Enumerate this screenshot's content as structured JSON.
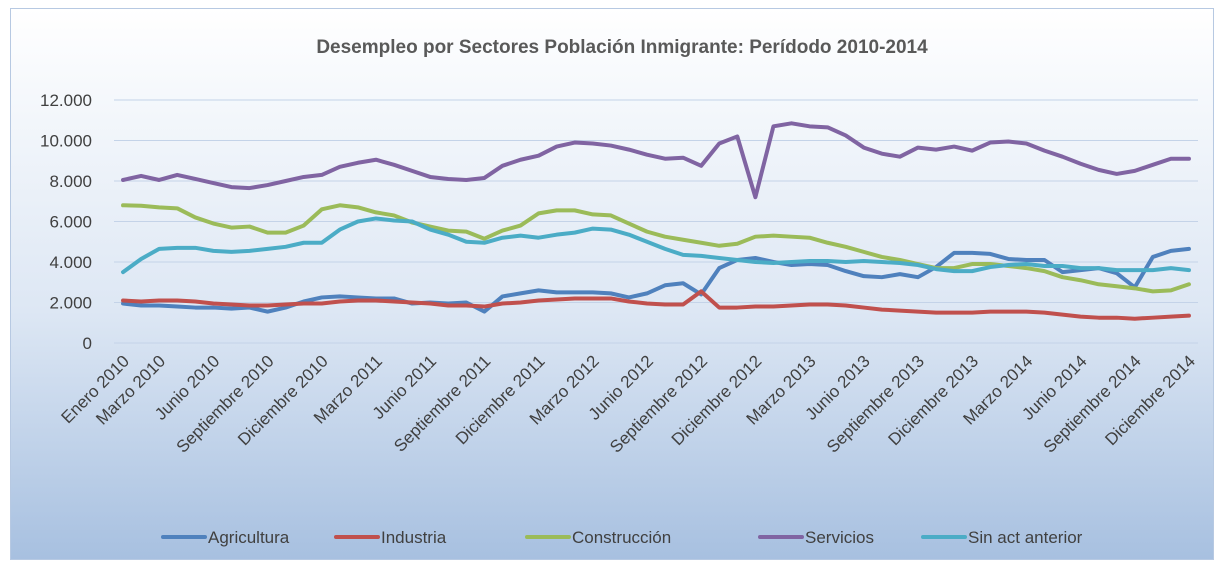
{
  "chart_data": {
    "type": "line",
    "title": "Desempleo por Sectores Población Inmigrante: Perídodo 2010-2014",
    "categories": [
      "Enero 2010",
      null,
      "Marzo 2010",
      null,
      null,
      "Junio 2010",
      null,
      null,
      "Septiembre 2010",
      null,
      null,
      "Diciembre 2010",
      null,
      null,
      "Marzo 2011",
      null,
      null,
      "Junio 2011",
      null,
      null,
      "Septiembre 2011",
      null,
      null,
      "Diciembre 2011",
      null,
      null,
      "Marzo 2012",
      null,
      null,
      "Junio 2012",
      null,
      null,
      "Septiembre 2012",
      null,
      null,
      "Diciembre 2012",
      null,
      null,
      "Marzo 2013",
      null,
      null,
      "Junio 2013",
      null,
      null,
      "Septiembre 2013",
      null,
      null,
      "Diciembre 2013",
      null,
      null,
      "Marzo 2014",
      null,
      null,
      "Junio 2014",
      null,
      null,
      "Septiembre 2014",
      null,
      null,
      "Diciembre 2014"
    ],
    "series": [
      {
        "name": "Agricultura",
        "color": "#4f81bd",
        "values": [
          1950,
          1850,
          1850,
          1800,
          1750,
          1750,
          1700,
          1750,
          1550,
          1750,
          2050,
          2250,
          2300,
          2250,
          2200,
          2200,
          1950,
          2000,
          1950,
          2000,
          1550,
          2300,
          2450,
          2600,
          2500,
          2500,
          2500,
          2450,
          2250,
          2450,
          2850,
          2950,
          2400,
          3700,
          4100,
          4200,
          4000,
          3850,
          3900,
          3850,
          3550,
          3300,
          3250,
          3400,
          3250,
          3750,
          4450,
          4450,
          4400,
          4150,
          4100,
          4100,
          3500,
          3600,
          3700,
          3450,
          2750,
          4250,
          4550,
          4650
        ]
      },
      {
        "name": "Industria",
        "color": "#c0504d",
        "values": [
          2100,
          2050,
          2100,
          2100,
          2050,
          1950,
          1900,
          1850,
          1850,
          1900,
          1950,
          1950,
          2050,
          2100,
          2100,
          2050,
          2000,
          1950,
          1850,
          1850,
          1800,
          1950,
          2000,
          2100,
          2150,
          2200,
          2200,
          2200,
          2050,
          1950,
          1900,
          1900,
          2550,
          1750,
          1750,
          1800,
          1800,
          1850,
          1900,
          1900,
          1850,
          1750,
          1650,
          1600,
          1550,
          1500,
          1500,
          1500,
          1550,
          1550,
          1550,
          1500,
          1400,
          1300,
          1250,
          1250,
          1200,
          1250,
          1300,
          1350
        ]
      },
      {
        "name": "Construcción",
        "color": "#9bbb59",
        "values": [
          6800,
          6780,
          6700,
          6650,
          6200,
          5900,
          5700,
          5750,
          5450,
          5450,
          5800,
          6600,
          6800,
          6700,
          6450,
          6300,
          5950,
          5750,
          5550,
          5500,
          5150,
          5550,
          5800,
          6400,
          6550,
          6550,
          6350,
          6300,
          5900,
          5500,
          5250,
          5100,
          4950,
          4800,
          4900,
          5250,
          5300,
          5250,
          5200,
          4950,
          4750,
          4500,
          4250,
          4100,
          3900,
          3700,
          3700,
          3900,
          3900,
          3800,
          3700,
          3550,
          3250,
          3100,
          2900,
          2800,
          2700,
          2550,
          2600,
          2900
        ]
      },
      {
        "name": "Servicios",
        "color": "#8064a2",
        "values": [
          8050,
          8250,
          8050,
          8300,
          8100,
          7900,
          7700,
          7650,
          7800,
          8000,
          8200,
          8300,
          8700,
          8900,
          9050,
          8800,
          8500,
          8200,
          8100,
          8050,
          8150,
          8750,
          9050,
          9250,
          9700,
          9900,
          9850,
          9750,
          9550,
          9300,
          9100,
          9150,
          8750,
          9850,
          10200,
          7200,
          10700,
          10850,
          10700,
          10650,
          10250,
          9650,
          9350,
          9200,
          9650,
          9550,
          9700,
          9500,
          9900,
          9950,
          9850,
          9500,
          9200,
          8850,
          8550,
          8350,
          8500,
          8800,
          9100,
          9100
        ]
      },
      {
        "name": "Sin act anterior",
        "color": "#4bacc6",
        "values": [
          3500,
          4150,
          4650,
          4700,
          4700,
          4550,
          4500,
          4550,
          4650,
          4750,
          4950,
          4950,
          5600,
          6000,
          6150,
          6050,
          6000,
          5600,
          5350,
          5000,
          4950,
          5200,
          5300,
          5200,
          5350,
          5450,
          5650,
          5600,
          5350,
          5000,
          4650,
          4350,
          4300,
          4200,
          4100,
          4000,
          3950,
          4000,
          4050,
          4050,
          4000,
          4050,
          4000,
          3950,
          3850,
          3650,
          3550,
          3550,
          3750,
          3850,
          3900,
          3800,
          3800,
          3700,
          3700,
          3600,
          3600,
          3600,
          3700,
          3600
        ]
      }
    ],
    "ylim": [
      0,
      12000
    ],
    "yticks": [
      0,
      {
        "value": 2000,
        "label": "2.000"
      },
      {
        "value": 4000,
        "label": "4.000"
      },
      {
        "value": 6000,
        "label": "6.000"
      },
      {
        "value": 8000,
        "label": "8.000"
      },
      {
        "value": 10000,
        "label": "10.000"
      },
      {
        "value": 12000,
        "label": "12.000"
      }
    ],
    "grid": true,
    "legend": "bottom"
  }
}
